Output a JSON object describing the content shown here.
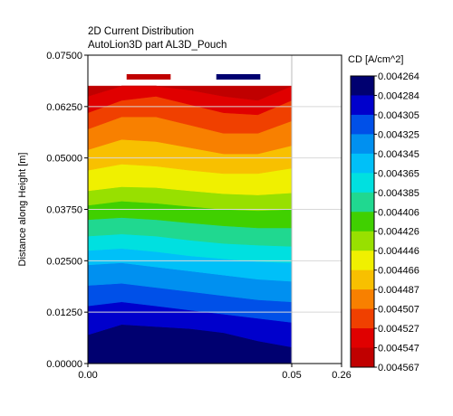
{
  "chart_data": {
    "type": "heatmap",
    "title": "2D Current Distribution",
    "subtitle": "AutoLion3D part AL3D_Pouch",
    "xlabel": "",
    "ylabel": "Distance along Height [m]",
    "xlim": [
      0,
      0.26
    ],
    "ylim": [
      0,
      0.075
    ],
    "x_ticks": [
      "0.00",
      "0.05",
      "0.26"
    ],
    "y_ticks": [
      "0.00000",
      "0.01250",
      "0.02500",
      "0.03750",
      "0.05000",
      "0.06250",
      "0.07500"
    ],
    "grid": true,
    "domain": {
      "x": [
        0,
        0.05
      ],
      "y": [
        0,
        0.0675
      ]
    },
    "tabs": [
      {
        "x_range": [
          0.0095,
          0.0203
        ],
        "color": "#c00000"
      },
      {
        "x_range": [
          0.0315,
          0.0423
        ],
        "color": "#000070"
      }
    ],
    "colorbar": {
      "label": "CD [A/cm^2]",
      "levels": [
        "0.004264",
        "0.004284",
        "0.004305",
        "0.004325",
        "0.004345",
        "0.004365",
        "0.004385",
        "0.004406",
        "0.004426",
        "0.004446",
        "0.004466",
        "0.004487",
        "0.004507",
        "0.004527",
        "0.004547",
        "0.004567"
      ],
      "colors": [
        "#000070",
        "#0000cc",
        "#0050e8",
        "#0090f0",
        "#00c0f8",
        "#00e0e0",
        "#20d890",
        "#40d000",
        "#98e000",
        "#f0f000",
        "#f8c000",
        "#f88000",
        "#f04000",
        "#e00000",
        "#c00000"
      ]
    },
    "contour_boundaries_y": [
      [
        0.007,
        0.0095,
        0.009,
        0.0085,
        0.0075,
        0.0055,
        0.004
      ],
      [
        0.014,
        0.015,
        0.014,
        0.013,
        0.012,
        0.011,
        0.01
      ],
      [
        0.019,
        0.0195,
        0.0185,
        0.0175,
        0.0165,
        0.0155,
        0.015
      ],
      [
        0.024,
        0.0245,
        0.0235,
        0.0225,
        0.0215,
        0.0205,
        0.02
      ],
      [
        0.0275,
        0.028,
        0.0272,
        0.0262,
        0.0255,
        0.0248,
        0.0245
      ],
      [
        0.031,
        0.0315,
        0.031,
        0.03,
        0.0292,
        0.0288,
        0.0285
      ],
      [
        0.035,
        0.0355,
        0.035,
        0.0342,
        0.0335,
        0.033,
        0.033
      ],
      [
        0.0385,
        0.0395,
        0.039,
        0.0382,
        0.0375,
        0.0372,
        0.0375
      ],
      [
        0.042,
        0.043,
        0.0428,
        0.042,
        0.0413,
        0.041,
        0.0415
      ],
      [
        0.047,
        0.0485,
        0.048,
        0.047,
        0.0462,
        0.0462,
        0.0475
      ],
      [
        0.052,
        0.0545,
        0.054,
        0.0525,
        0.051,
        0.051,
        0.053
      ],
      [
        0.057,
        0.06,
        0.06,
        0.058,
        0.056,
        0.056,
        0.059
      ],
      [
        0.061,
        0.064,
        0.065,
        0.063,
        0.061,
        0.0605,
        0.064
      ],
      [
        0.065,
        0.0675,
        0.0675,
        0.0665,
        0.065,
        0.064,
        0.0675
      ]
    ],
    "contour_x": [
      0,
      0.0083,
      0.0167,
      0.025,
      0.0333,
      0.0417,
      0.05
    ]
  }
}
